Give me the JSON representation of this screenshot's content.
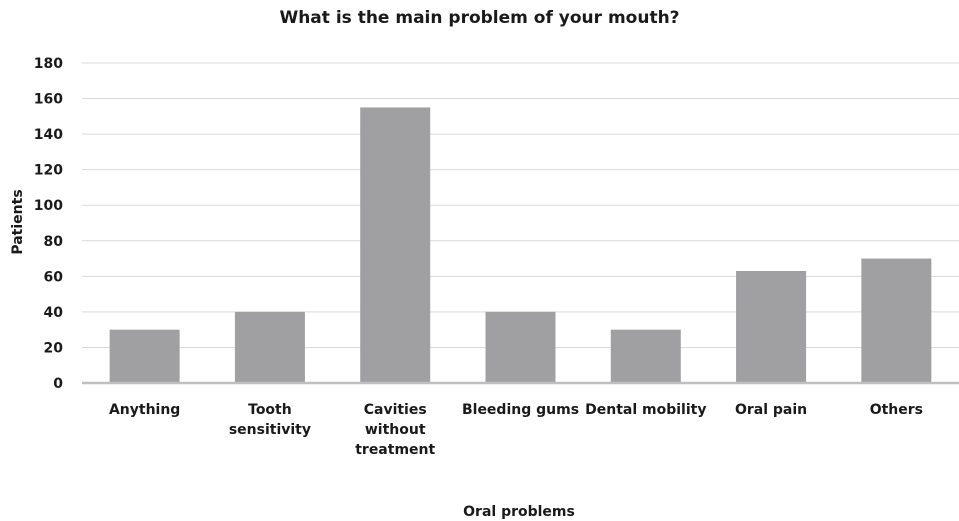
{
  "chart_data": {
    "type": "bar",
    "title": "What is the main problem of your mouth?",
    "xlabel": "Oral problems",
    "ylabel": "Patients",
    "categories": [
      [
        "Anything"
      ],
      [
        "Tooth",
        "sensitivity"
      ],
      [
        "Cavities",
        "without",
        "treatment"
      ],
      [
        "Bleeding gums"
      ],
      [
        "Dental mobility"
      ],
      [
        "Oral pain"
      ],
      [
        "Others"
      ]
    ],
    "values": [
      30,
      40,
      155,
      40,
      30,
      63,
      70
    ],
    "ylim": [
      0,
      180
    ],
    "yticks": [
      "0",
      "20",
      "40",
      "60",
      "80",
      "100",
      "120",
      "140",
      "160",
      "180"
    ],
    "grid": true,
    "bar_color": "#a0a0a3"
  }
}
